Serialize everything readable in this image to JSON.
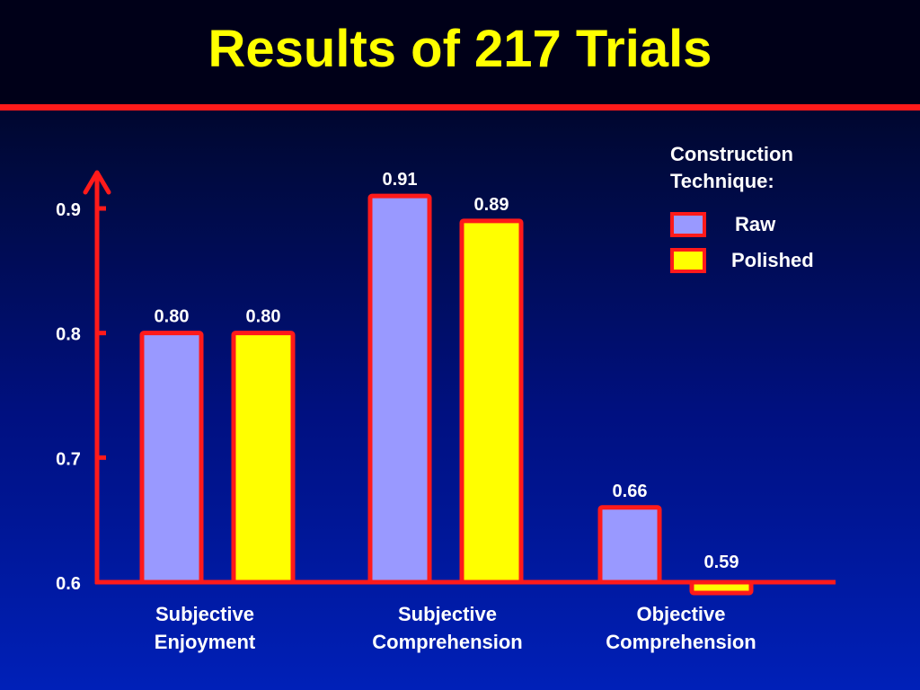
{
  "title": "Results of 217 Trials",
  "chart_data": {
    "type": "bar",
    "title": "Results of 217 Trials",
    "categories": [
      [
        "Subjective",
        "Enjoyment"
      ],
      [
        "Subjective",
        "Comprehension"
      ],
      [
        "Objective",
        "Comprehension"
      ]
    ],
    "series": [
      {
        "name": "Raw",
        "color": "#9999ff",
        "values": [
          0.8,
          0.91,
          0.66
        ]
      },
      {
        "name": "Polished",
        "color": "#ffff00",
        "values": [
          0.8,
          0.89,
          0.59
        ]
      }
    ],
    "value_labels": [
      [
        "0.80",
        "0.91",
        "0.66"
      ],
      [
        "0.80",
        "0.89",
        "0.59"
      ]
    ],
    "yticks": [
      "0.6",
      "0.7",
      "0.8",
      "0.9"
    ],
    "ylim": [
      0.6,
      0.95
    ],
    "legend": {
      "title_lines": [
        "Construction",
        "Technique:"
      ],
      "placement": "top-right"
    },
    "grid": false,
    "accent_color": "#ff1a1a"
  }
}
